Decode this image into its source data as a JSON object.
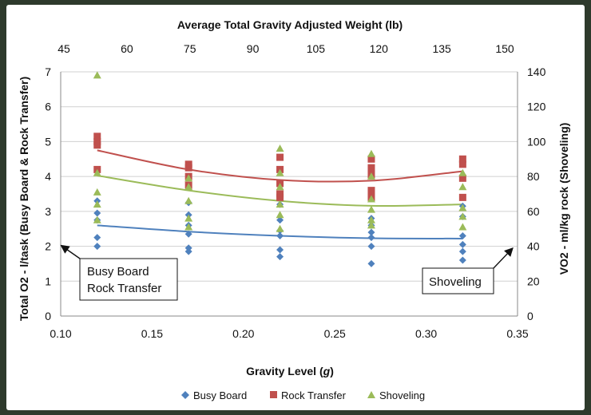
{
  "chart_data": {
    "type": "scatter",
    "title": "",
    "top_axis_label": "Average Total Gravity Adjusted Weight (lb)",
    "top_ticks": [
      "45",
      "60",
      "75",
      "90",
      "105",
      "120",
      "135",
      "150"
    ],
    "xlabel_prefix": "Gravity Level (",
    "xlabel_var": "g",
    "xlabel_suffix": ")",
    "ylabel_left": "Total O2 - l/task (Busy Board & Rock Transfer)",
    "ylabel_right": "VO2 - ml/kg rock (Shoveling)",
    "xlim": [
      0.1,
      0.35
    ],
    "ylim_left": [
      0,
      7
    ],
    "ylim_right": [
      0,
      140
    ],
    "x_ticks": [
      "0.10",
      "0.15",
      "0.20",
      "0.25",
      "0.30",
      "0.35"
    ],
    "y_left_ticks": [
      "0",
      "1",
      "2",
      "3",
      "4",
      "5",
      "6",
      "7"
    ],
    "y_right_ticks": [
      "0",
      "20",
      "40",
      "60",
      "80",
      "100",
      "120",
      "140"
    ],
    "grid": "horizontal",
    "legend_position": "bottom",
    "colors": {
      "busy": "#4f81bd",
      "rock": "#c0504d",
      "shovel": "#9bbb59"
    },
    "series": [
      {
        "name": "Busy Board",
        "marker": "diamond",
        "axis": "left",
        "x": [
          0.12,
          0.12,
          0.12,
          0.12,
          0.12,
          0.17,
          0.17,
          0.17,
          0.17,
          0.17,
          0.17,
          0.22,
          0.22,
          0.22,
          0.22,
          0.22,
          0.22,
          0.27,
          0.27,
          0.27,
          0.27,
          0.27,
          0.27,
          0.32,
          0.32,
          0.32,
          0.32,
          0.32,
          0.32
        ],
        "y": [
          3.3,
          2.95,
          2.75,
          2.25,
          2.0,
          3.25,
          2.9,
          2.6,
          2.35,
          1.95,
          1.85,
          3.2,
          2.75,
          2.45,
          2.3,
          1.9,
          1.7,
          2.8,
          2.6,
          2.4,
          2.25,
          2.0,
          1.5,
          3.15,
          2.85,
          2.3,
          2.05,
          1.85,
          1.6
        ],
        "fit": [
          [
            0.12,
            2.6
          ],
          [
            0.17,
            2.42
          ],
          [
            0.22,
            2.3
          ],
          [
            0.27,
            2.23
          ],
          [
            0.32,
            2.22
          ]
        ]
      },
      {
        "name": "Rock Transfer",
        "marker": "square",
        "axis": "left",
        "x": [
          0.12,
          0.12,
          0.12,
          0.12,
          0.17,
          0.17,
          0.17,
          0.17,
          0.22,
          0.22,
          0.22,
          0.22,
          0.22,
          0.27,
          0.27,
          0.27,
          0.27,
          0.27,
          0.32,
          0.32,
          0.32,
          0.32
        ],
        "y": [
          5.15,
          5.0,
          4.9,
          4.2,
          4.35,
          4.25,
          4.0,
          3.75,
          4.55,
          4.2,
          3.8,
          3.5,
          3.4,
          4.5,
          4.25,
          4.05,
          3.6,
          3.4,
          4.5,
          4.35,
          3.95,
          3.4
        ],
        "fit": [
          [
            0.12,
            4.75
          ],
          [
            0.17,
            4.2
          ],
          [
            0.22,
            3.9
          ],
          [
            0.27,
            3.88
          ],
          [
            0.32,
            4.15
          ]
        ]
      },
      {
        "name": "Shoveling",
        "marker": "triangle",
        "axis": "right",
        "x": [
          0.12,
          0.12,
          0.12,
          0.12,
          0.12,
          0.17,
          0.17,
          0.17,
          0.17,
          0.17,
          0.22,
          0.22,
          0.22,
          0.22,
          0.22,
          0.22,
          0.27,
          0.27,
          0.27,
          0.27,
          0.27,
          0.27,
          0.32,
          0.32,
          0.32,
          0.32,
          0.32
        ],
        "y": [
          138,
          82,
          71,
          64,
          55,
          79,
          74,
          66,
          56,
          51,
          96,
          82,
          74,
          64,
          58,
          50,
          93,
          80,
          67,
          61,
          55,
          52,
          82,
          74,
          62,
          57,
          51
        ],
        "fit": [
          [
            0.12,
            80.5
          ],
          [
            0.17,
            72
          ],
          [
            0.22,
            66
          ],
          [
            0.27,
            63.2
          ],
          [
            0.32,
            64
          ]
        ]
      }
    ],
    "annotations": [
      {
        "lines": [
          "Busy Board",
          "Rock Transfer"
        ],
        "points_to": "left axis"
      },
      {
        "lines": [
          "Shoveling"
        ],
        "points_to": "right axis"
      }
    ]
  }
}
